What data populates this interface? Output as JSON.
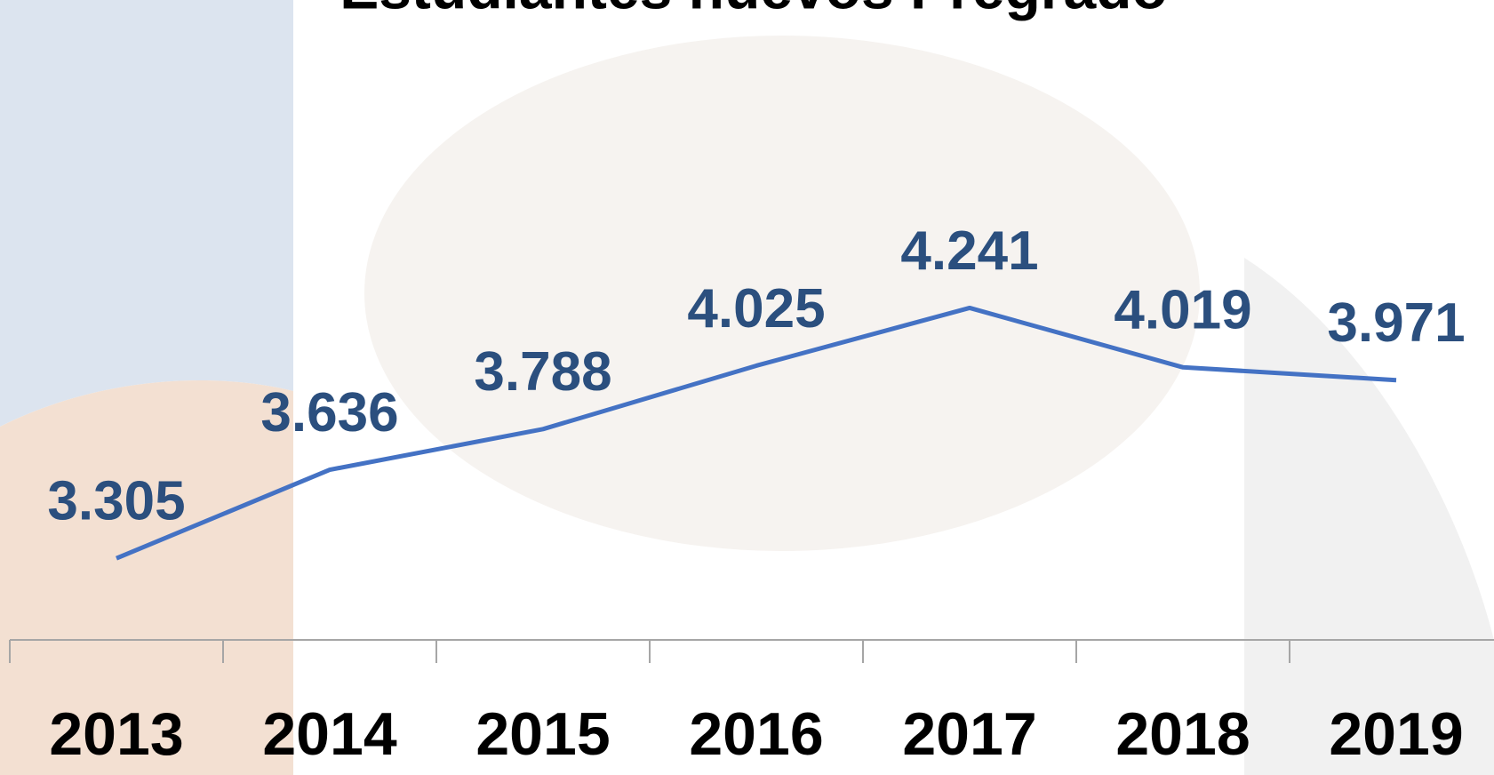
{
  "chart_data": {
    "type": "line",
    "title": "Estudiantes nuevos Pregrado",
    "categories": [
      "2013",
      "2014",
      "2015",
      "2016",
      "2017",
      "2018",
      "2019"
    ],
    "series": [
      {
        "name": "Estudiantes nuevos",
        "color": "#4472c4",
        "values": [
          3305,
          3636,
          3788,
          4025,
          4241,
          4019,
          3971
        ],
        "value_labels": [
          "3.305",
          "3.636",
          "3.788",
          "4.025",
          "4.241",
          "4.019",
          "3.971"
        ]
      }
    ],
    "ylim": [
      3000,
      5000
    ]
  }
}
